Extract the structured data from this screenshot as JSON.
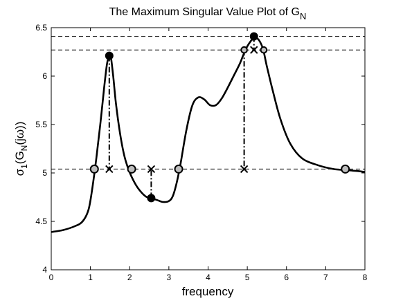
{
  "chart_data": {
    "type": "line",
    "title": "The Maximum Singular Value Plot of G",
    "title_subscript": "N",
    "xlabel": "frequency",
    "ylabel_parts": {
      "sigma": "σ",
      "sigma_sub": "1",
      "open": "(G",
      "g_sub": "N",
      "rest": "(jω))"
    },
    "xlim": [
      0,
      8
    ],
    "ylim": [
      4,
      6.5
    ],
    "xticks": [
      "0",
      "1",
      "2",
      "3",
      "4",
      "5",
      "6",
      "7",
      "8"
    ],
    "yticks": [
      "4",
      "4.5",
      "5",
      "5.5",
      "6",
      "6.5"
    ],
    "grid": false,
    "curve": {
      "x": [
        0,
        0.3,
        0.6,
        0.8,
        0.95,
        1.05,
        1.15,
        1.25,
        1.35,
        1.42,
        1.48,
        1.52,
        1.58,
        1.65,
        1.75,
        1.85,
        1.95,
        2.05,
        2.2,
        2.4,
        2.55,
        2.7,
        2.85,
        3.0,
        3.1,
        3.2,
        3.3,
        3.45,
        3.6,
        3.75,
        3.9,
        4.05,
        4.2,
        4.35,
        4.5,
        4.65,
        4.8,
        4.9,
        4.95,
        5.05,
        5.15,
        5.2,
        5.3,
        5.4,
        5.5,
        5.65,
        5.85,
        6.1,
        6.4,
        6.8,
        7.2,
        7.5,
        7.8,
        8.0
      ],
      "y": [
        4.39,
        4.41,
        4.45,
        4.5,
        4.62,
        4.85,
        5.15,
        5.5,
        5.88,
        6.12,
        6.21,
        6.2,
        6.0,
        5.72,
        5.42,
        5.2,
        5.06,
        4.96,
        4.85,
        4.76,
        4.74,
        4.72,
        4.7,
        4.71,
        4.76,
        4.9,
        5.1,
        5.45,
        5.7,
        5.78,
        5.76,
        5.7,
        5.7,
        5.77,
        5.88,
        6.0,
        6.12,
        6.22,
        6.27,
        6.34,
        6.39,
        6.4,
        6.37,
        6.28,
        6.1,
        5.85,
        5.55,
        5.3,
        5.15,
        5.08,
        5.04,
        5.03,
        5.02,
        5.01
      ]
    },
    "reference_levels": [
      6.41,
      6.27,
      5.04
    ],
    "filled_points": [
      {
        "x": 1.48,
        "y": 6.21
      },
      {
        "x": 2.55,
        "y": 4.74
      },
      {
        "x": 5.17,
        "y": 6.41
      }
    ],
    "gray_points": [
      {
        "x": 1.1,
        "y": 5.04
      },
      {
        "x": 2.05,
        "y": 5.04
      },
      {
        "x": 3.25,
        "y": 5.04
      },
      {
        "x": 7.5,
        "y": 5.04
      }
    ],
    "gray_points_small": [
      {
        "x": 4.92,
        "y": 6.27
      },
      {
        "x": 5.42,
        "y": 6.27
      }
    ],
    "cross_points": [
      {
        "x": 1.48,
        "y": 5.04
      },
      {
        "x": 2.55,
        "y": 5.04
      },
      {
        "x": 4.92,
        "y": 5.04
      },
      {
        "x": 5.17,
        "y": 6.27
      }
    ],
    "dashdot_segments": [
      {
        "x": 1.48,
        "y1": 6.21,
        "y2": 5.04
      },
      {
        "x": 2.55,
        "y1": 4.74,
        "y2": 5.04
      },
      {
        "x": 4.92,
        "y1": 6.27,
        "y2": 5.04
      },
      {
        "x": 5.17,
        "y1": 6.41,
        "y2": 6.27
      }
    ]
  }
}
